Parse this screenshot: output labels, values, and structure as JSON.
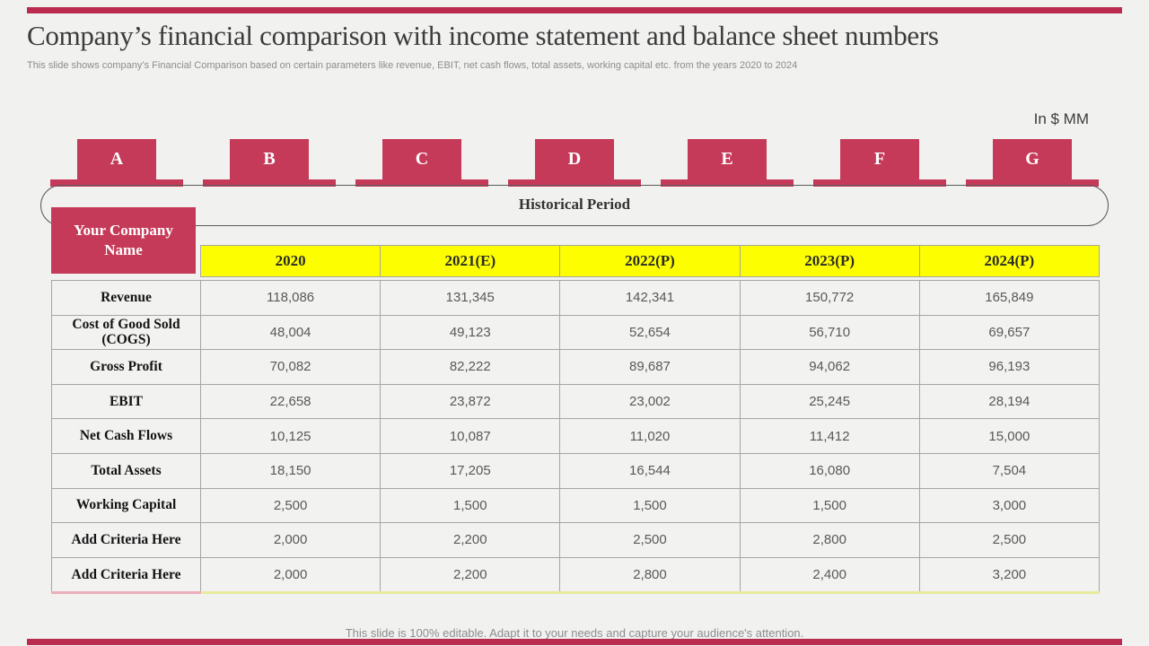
{
  "slide": {
    "title": "Company’s financial comparison with income statement and balance sheet numbers",
    "subtitle": "This slide shows company’s Financial Comparison based on certain parameters like revenue, EBIT,  net cash flows, total assets, working capital etc. from the years 2020 to 2024",
    "unit_label": "In $ MM",
    "footer": "This slide is 100% editable. Adapt it to your needs and capture your audience's attention."
  },
  "timeline": {
    "tabs": [
      "A",
      "B",
      "C",
      "D",
      "E",
      "F",
      "G"
    ],
    "banner_label": "Historical Period"
  },
  "company_box": {
    "label": "Your Company Name"
  },
  "table": {
    "column_headers": [
      "2020",
      "2021(E)",
      "2022(P)",
      "2023(P)",
      "2024(P)"
    ],
    "rows": [
      {
        "label": "Revenue",
        "values": [
          "118,086",
          "131,345",
          "142,341",
          "150,772",
          "165,849"
        ]
      },
      {
        "label": "Cost of Good Sold (COGS)",
        "values": [
          "48,004",
          "49,123",
          "52,654",
          "56,710",
          "69,657"
        ]
      },
      {
        "label": "Gross Profit",
        "values": [
          "70,082",
          "82,222",
          "89,687",
          "94,062",
          "96,193"
        ]
      },
      {
        "label": "EBIT",
        "values": [
          "22,658",
          "23,872",
          "23,002",
          "25,245",
          "28,194"
        ]
      },
      {
        "label": "Net Cash Flows",
        "values": [
          "10,125",
          "10,087",
          "11,020",
          "11,412",
          "15,000"
        ]
      },
      {
        "label": "Total Assets",
        "values": [
          "18,150",
          "17,205",
          "16,544",
          "16,080",
          "7,504"
        ]
      },
      {
        "label": "Working Capital",
        "values": [
          "2,500",
          "1,500",
          "1,500",
          "1,500",
          "3,000"
        ]
      },
      {
        "label": "Add Criteria Here",
        "values": [
          "2,000",
          "2,200",
          "2,500",
          "2,800",
          "2,500"
        ]
      },
      {
        "label": "Add Criteria Here",
        "values": [
          "2,000",
          "2,200",
          "2,800",
          "2,400",
          "3,200"
        ]
      }
    ]
  },
  "colors": {
    "accent_red": "#c63a59",
    "accent_bar_red": "#b92b4f",
    "header_yellow": "#fdff00",
    "background": "#f1f1f0",
    "table_border": "#a6a6a6",
    "value_text": "#595959",
    "bottom_edge_yellow": "#e9eb9c",
    "bottom_edge_pink": "#ecaebb"
  }
}
